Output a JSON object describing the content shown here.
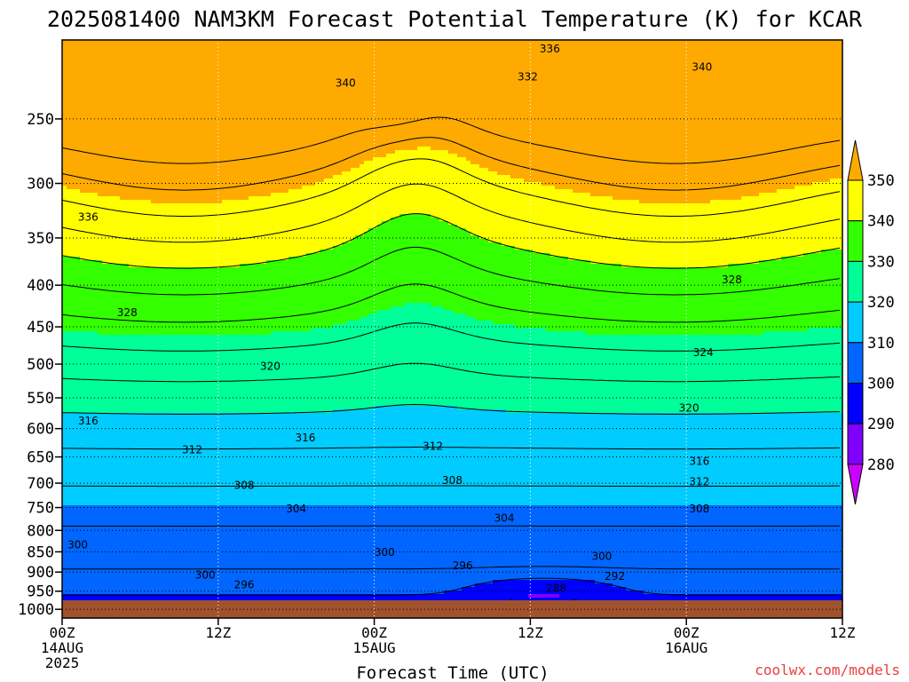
{
  "chart_data": {
    "type": "heatmap",
    "title": "2025081400 NAM3KM Forecast Potential Temperature (K) for KCAR",
    "xlabel": "Forecast Time (UTC)",
    "credit": "coolwx.com/models",
    "x_ticks": [
      {
        "hour": 0,
        "lines": [
          "00Z",
          "14AUG",
          "2025"
        ]
      },
      {
        "hour": 12,
        "lines": [
          "12Z"
        ]
      },
      {
        "hour": 24,
        "lines": [
          "00Z",
          "15AUG"
        ]
      },
      {
        "hour": 36,
        "lines": [
          "12Z"
        ]
      },
      {
        "hour": 48,
        "lines": [
          "00Z",
          "16AUG"
        ]
      },
      {
        "hour": 60,
        "lines": [
          "12Z"
        ]
      }
    ],
    "xlim": [
      0,
      60
    ],
    "y_ticks": [
      250,
      300,
      350,
      400,
      450,
      500,
      550,
      600,
      650,
      700,
      750,
      800,
      850,
      900,
      950,
      1000
    ],
    "ylim": [
      200,
      1025
    ],
    "ylabel": "",
    "y_scale": "log-pressure (inverted)",
    "grid": true,
    "colorbar": {
      "levels": [
        280,
        290,
        300,
        310,
        320,
        330,
        340,
        350
      ],
      "colors": [
        "#cc00ff",
        "#7f00ff",
        "#0000ff",
        "#0066ff",
        "#00ccff",
        "#00ff99",
        "#33ff00",
        "#ffff00",
        "#ffaa00"
      ],
      "placement": "right"
    },
    "ground_color": "#a0522d",
    "contour_interval": 4,
    "contour_labels": [
      {
        "hour": 37.5,
        "p": 205,
        "value": "336"
      },
      {
        "hour": 35.8,
        "p": 222,
        "value": "332"
      },
      {
        "hour": 21.8,
        "p": 226,
        "value": "340"
      },
      {
        "hour": 49.2,
        "p": 216,
        "value": "340"
      },
      {
        "hour": 2.0,
        "p": 330,
        "value": "336"
      },
      {
        "hour": 5.0,
        "p": 432,
        "value": "328"
      },
      {
        "hour": 51.5,
        "p": 394,
        "value": "328"
      },
      {
        "hour": 49.3,
        "p": 484,
        "value": "324"
      },
      {
        "hour": 16.0,
        "p": 503,
        "value": "320"
      },
      {
        "hour": 48.2,
        "p": 566,
        "value": "320"
      },
      {
        "hour": 2.0,
        "p": 587,
        "value": "316"
      },
      {
        "hour": 18.7,
        "p": 616,
        "value": "316"
      },
      {
        "hour": 49.0,
        "p": 658,
        "value": "316"
      },
      {
        "hour": 10.0,
        "p": 637,
        "value": "312"
      },
      {
        "hour": 28.5,
        "p": 631,
        "value": "312"
      },
      {
        "hour": 49.0,
        "p": 697,
        "value": "312"
      },
      {
        "hour": 14.0,
        "p": 704,
        "value": "308"
      },
      {
        "hour": 30.0,
        "p": 695,
        "value": "308"
      },
      {
        "hour": 49.0,
        "p": 753,
        "value": "308"
      },
      {
        "hour": 18.0,
        "p": 753,
        "value": "304"
      },
      {
        "hour": 34.0,
        "p": 773,
        "value": "304"
      },
      {
        "hour": 1.2,
        "p": 833,
        "value": "300"
      },
      {
        "hour": 24.8,
        "p": 851,
        "value": "300"
      },
      {
        "hour": 41.5,
        "p": 861,
        "value": "300"
      },
      {
        "hour": 11.0,
        "p": 907,
        "value": "300"
      },
      {
        "hour": 14.0,
        "p": 933,
        "value": "296"
      },
      {
        "hour": 30.8,
        "p": 884,
        "value": "296"
      },
      {
        "hour": 38.0,
        "p": 942,
        "value": "288"
      },
      {
        "hour": 42.5,
        "p": 911,
        "value": "292"
      }
    ]
  }
}
